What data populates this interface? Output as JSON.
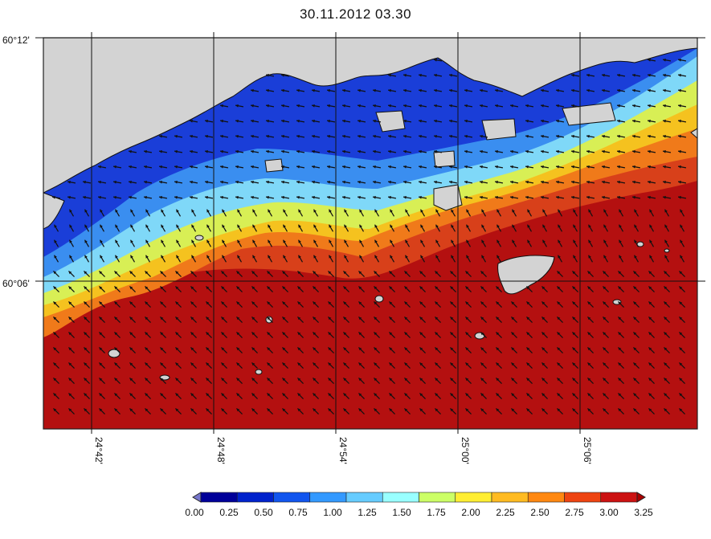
{
  "title": "30.11.2012 03.30",
  "map": {
    "lat_labels": [
      "60°12'",
      "60°06'"
    ],
    "lon_labels": [
      "24°42'",
      "24°48'",
      "24°54'",
      "25°00'",
      "25°06'"
    ],
    "land_color": "#d3d3d3",
    "arrow_direction": "northwest"
  },
  "colorbar": {
    "ticks": [
      "0.00",
      "0.25",
      "0.50",
      "0.75",
      "1.00",
      "1.25",
      "1.50",
      "1.75",
      "2.00",
      "2.25",
      "2.50",
      "2.75",
      "3.00",
      "3.25"
    ],
    "colors": [
      "#000099",
      "#0022cc",
      "#1155ee",
      "#3399ff",
      "#66ccff",
      "#99ffff",
      "#ccff66",
      "#ffee33",
      "#ffbb22",
      "#ff8811",
      "#ee4411",
      "#cc1111"
    ],
    "under_color": "#7777cc",
    "over_color": "#aa0000"
  }
}
